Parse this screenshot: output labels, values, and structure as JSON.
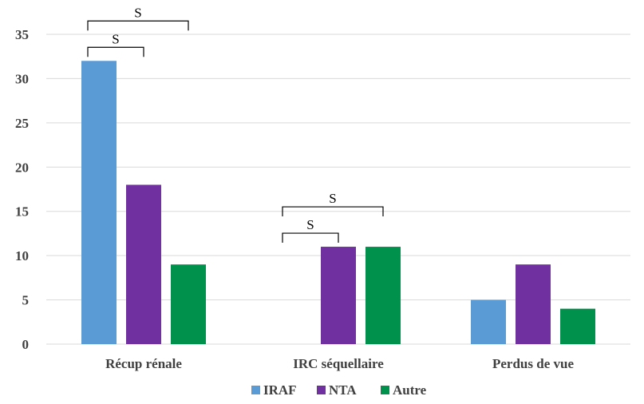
{
  "chart_data": {
    "type": "bar",
    "categories": [
      "Récup rénale",
      "IRC séquellaire",
      "Perdus de vue"
    ],
    "series": [
      {
        "name": "IRAF",
        "values": [
          32,
          0,
          5
        ],
        "color": "#5b9bd5"
      },
      {
        "name": "NTA",
        "values": [
          18,
          11,
          9
        ],
        "color": "#7030a0"
      },
      {
        "name": "Autre",
        "values": [
          9,
          11,
          4
        ],
        "color": "#00914c"
      }
    ],
    "ylim": [
      0,
      35
    ],
    "yticks": [
      0,
      5,
      10,
      15,
      20,
      25,
      30,
      35
    ],
    "grid": true,
    "legend": "bottom",
    "significance": [
      {
        "category": 0,
        "from_series": 0,
        "to_series": 1,
        "label": "S"
      },
      {
        "category": 0,
        "from_series": 0,
        "to_series": 2,
        "label": "S"
      },
      {
        "category": 1,
        "from_series": 0,
        "to_series": 1,
        "label": "S"
      },
      {
        "category": 1,
        "from_series": 0,
        "to_series": 2,
        "label": "S"
      }
    ]
  }
}
